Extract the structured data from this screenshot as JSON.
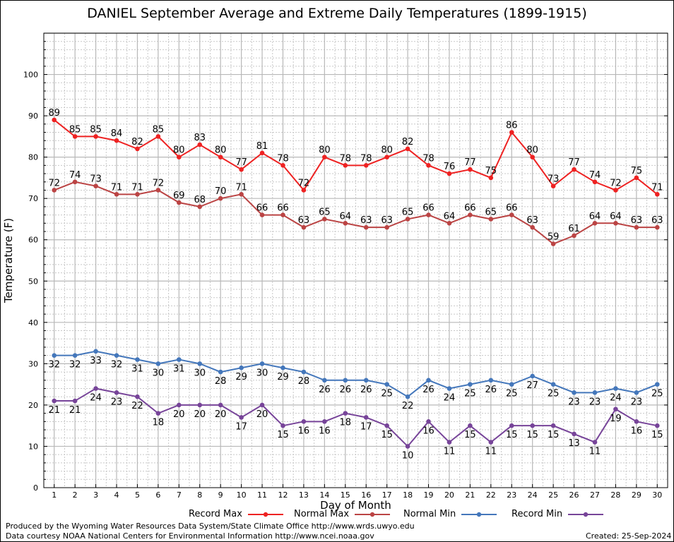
{
  "title": "DANIEL September Average and Extreme Daily Temperatures (1899-1915)",
  "footer": {
    "produced_by": "Produced by the Wyoming Water Resources Data System/State Climate Office http://www.wrds.uwyo.edu",
    "courtesy": "Data courtesy NOAA National Centers for Environmental Information http://www.ncei.noaa.gov",
    "created": "Created:  25-Sep-2024"
  },
  "chart_data": {
    "type": "line",
    "xlabel": "Day of Month",
    "ylabel": "Temperature (F)",
    "x": [
      1,
      2,
      3,
      4,
      5,
      6,
      7,
      8,
      9,
      10,
      11,
      12,
      13,
      14,
      15,
      16,
      17,
      18,
      19,
      20,
      21,
      22,
      23,
      24,
      25,
      26,
      27,
      28,
      29,
      30
    ],
    "xlim": [
      0.5,
      30.5
    ],
    "ylim": [
      0,
      110
    ],
    "yticks": [
      0,
      10,
      20,
      30,
      40,
      50,
      60,
      70,
      80,
      90,
      100
    ],
    "grid": true,
    "legend_position": "bottom",
    "series": [
      {
        "name": "Record Max",
        "color": "#ee2222",
        "values": [
          89,
          85,
          85,
          84,
          82,
          85,
          80,
          83,
          80,
          77,
          81,
          78,
          72,
          80,
          78,
          78,
          80,
          82,
          78,
          76,
          77,
          75,
          86,
          80,
          73,
          77,
          74,
          72,
          75,
          71
        ]
      },
      {
        "name": "Normal Max",
        "color": "#bb4444",
        "values": [
          72,
          74,
          73,
          71,
          71,
          72,
          69,
          68,
          70,
          71,
          66,
          66,
          63,
          65,
          64,
          63,
          63,
          65,
          66,
          64,
          66,
          65,
          66,
          63,
          59,
          61,
          64,
          64,
          63,
          63
        ]
      },
      {
        "name": "Normal Min",
        "color": "#4477bb",
        "values": [
          32,
          32,
          33,
          32,
          31,
          30,
          31,
          30,
          28,
          29,
          30,
          29,
          28,
          26,
          26,
          26,
          25,
          22,
          26,
          24,
          25,
          26,
          25,
          27,
          25,
          23,
          23,
          24,
          23,
          25
        ]
      },
      {
        "name": "Record Min",
        "color": "#774499",
        "values": [
          21,
          21,
          24,
          23,
          22,
          18,
          20,
          20,
          20,
          17,
          20,
          15,
          16,
          16,
          18,
          17,
          15,
          10,
          16,
          11,
          15,
          11,
          15,
          15,
          15,
          13,
          11,
          19,
          16,
          15
        ]
      }
    ]
  }
}
